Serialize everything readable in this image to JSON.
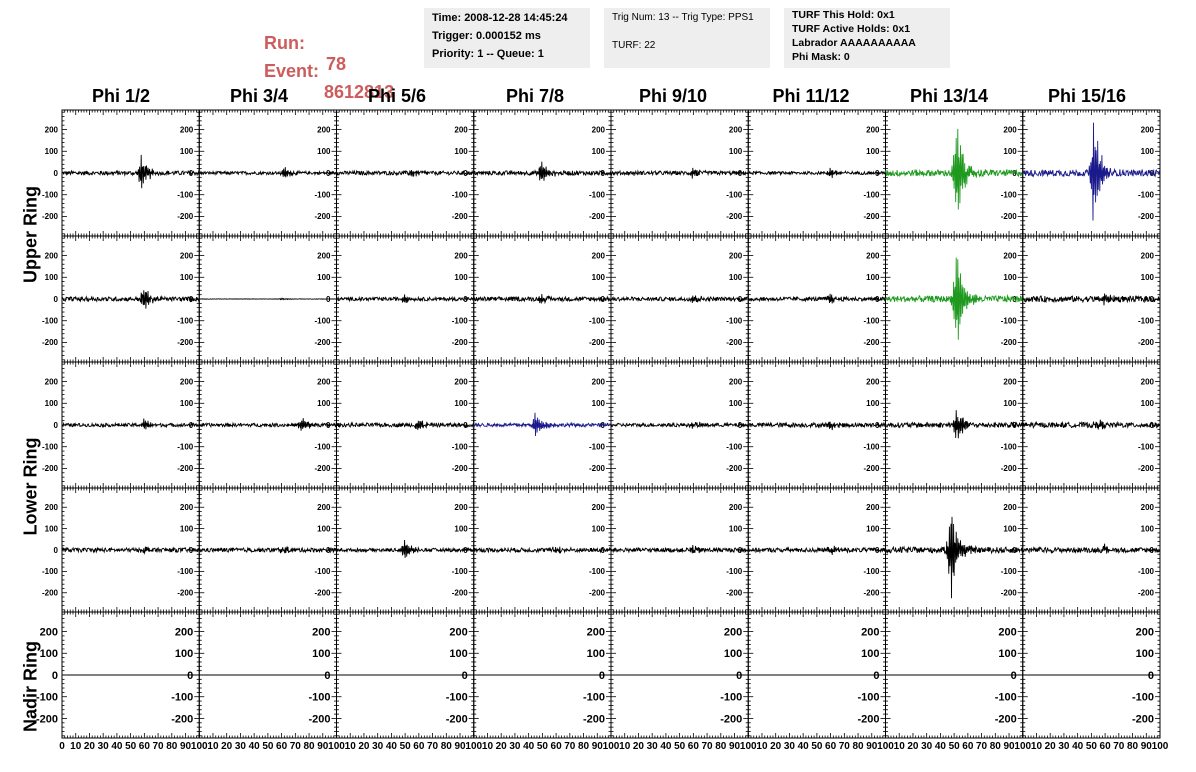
{
  "header": {
    "run_label": "Run:",
    "run_value": "78",
    "event_label": "Event:",
    "event_value": "8612813"
  },
  "info_boxes": [
    {
      "lines": [
        "Time: 2008-12-28 14:45:24",
        "Trigger: 0.000152 ms",
        "Priority: 1 -- Queue: 1"
      ]
    },
    {
      "lines": [
        "Trig Num: 13 -- Trig Type: PPS1",
        "TURF: 22"
      ]
    },
    {
      "lines": [
        "TURF This Hold: 0x1",
        "TURF Active Holds: 0x1",
        "Labrador AAAAAAAAAA",
        "Phi Mask: 0"
      ]
    }
  ],
  "phi_titles": [
    "Phi 1/2",
    "Phi 3/4",
    "Phi 5/6",
    "Phi 7/8",
    "Phi 9/10",
    "Phi 11/12",
    "Phi 13/14",
    "Phi 15/16"
  ],
  "ring_labels": [
    "Upper Ring",
    "Lower Ring",
    "Nadir Ring"
  ],
  "colors": {
    "normal": "#000000",
    "triggered_green": "#1f9a1f",
    "triggered_blue": "#1a1a8c",
    "header_red": "#cd5c5c",
    "box_bg": "#eeeeee"
  },
  "chart_data": {
    "type": "line",
    "xlim": [
      0,
      100
    ],
    "ylim": [
      -290,
      290
    ],
    "x_tick_labels": [
      "0",
      "10",
      "20",
      "30",
      "40",
      "50",
      "60",
      "70",
      "80",
      "90",
      "100"
    ],
    "y_tick_labels": [
      "200",
      "100",
      "0",
      "-100",
      "-200"
    ],
    "grid": false,
    "rows": 5,
    "columns": 8,
    "panels": [
      [
        {
          "color": "normal",
          "peak_x": 58,
          "amp": 90,
          "noise": 10
        },
        {
          "color": "normal",
          "peak_x": 62,
          "amp": 30,
          "noise": 7
        },
        {
          "color": "normal",
          "peak_x": 55,
          "amp": 25,
          "noise": 9
        },
        {
          "color": "normal",
          "peak_x": 50,
          "amp": 60,
          "noise": 10
        },
        {
          "color": "normal",
          "peak_x": 60,
          "amp": 25,
          "noise": 9
        },
        {
          "color": "normal",
          "peak_x": 60,
          "amp": 25,
          "noise": 7
        },
        {
          "color": "triggered_green",
          "peak_x": 52,
          "amp": 270,
          "noise": 15
        },
        {
          "color": "triggered_blue",
          "peak_x": 52,
          "amp": 270,
          "noise": 15
        }
      ],
      [
        {
          "color": "normal",
          "peak_x": 60,
          "amp": 60,
          "noise": 10
        },
        {
          "color": "normal",
          "peak_x": 60,
          "amp": 4,
          "noise": 1
        },
        {
          "color": "normal",
          "peak_x": 50,
          "amp": 30,
          "noise": 8
        },
        {
          "color": "normal",
          "peak_x": 50,
          "amp": 25,
          "noise": 10
        },
        {
          "color": "normal",
          "peak_x": 60,
          "amp": 25,
          "noise": 9
        },
        {
          "color": "normal",
          "peak_x": 60,
          "amp": 25,
          "noise": 9
        },
        {
          "color": "triggered_green",
          "peak_x": 52,
          "amp": 260,
          "noise": 15
        },
        {
          "color": "normal",
          "peak_x": 60,
          "amp": 30,
          "noise": 14
        }
      ],
      [
        {
          "color": "normal",
          "peak_x": 60,
          "amp": 25,
          "noise": 8
        },
        {
          "color": "normal",
          "peak_x": 75,
          "amp": 35,
          "noise": 8
        },
        {
          "color": "normal",
          "peak_x": 60,
          "amp": 30,
          "noise": 9
        },
        {
          "color": "triggered_blue",
          "peak_x": 45,
          "amp": 60,
          "noise": 8
        },
        {
          "color": "normal",
          "peak_x": 60,
          "amp": 20,
          "noise": 8
        },
        {
          "color": "normal",
          "peak_x": 60,
          "amp": 20,
          "noise": 10
        },
        {
          "color": "normal",
          "peak_x": 52,
          "amp": 80,
          "noise": 12
        },
        {
          "color": "normal",
          "peak_x": 55,
          "amp": 30,
          "noise": 12
        }
      ],
      [
        {
          "color": "normal",
          "peak_x": 60,
          "amp": 20,
          "noise": 10
        },
        {
          "color": "normal",
          "peak_x": 60,
          "amp": 20,
          "noise": 10
        },
        {
          "color": "normal",
          "peak_x": 50,
          "amp": 50,
          "noise": 8
        },
        {
          "color": "normal",
          "peak_x": 60,
          "amp": 20,
          "noise": 10
        },
        {
          "color": "normal",
          "peak_x": 60,
          "amp": 20,
          "noise": 10
        },
        {
          "color": "normal",
          "peak_x": 60,
          "amp": 20,
          "noise": 10
        },
        {
          "color": "normal",
          "peak_x": 48,
          "amp": 230,
          "noise": 14
        },
        {
          "color": "normal",
          "peak_x": 60,
          "amp": 30,
          "noise": 12
        }
      ],
      [
        {
          "color": "normal",
          "peak_x": 50,
          "amp": 0,
          "noise": 0
        },
        {
          "color": "normal",
          "peak_x": 50,
          "amp": 0,
          "noise": 0
        },
        {
          "color": "normal",
          "peak_x": 50,
          "amp": 0,
          "noise": 0
        },
        {
          "color": "normal",
          "peak_x": 50,
          "amp": 0,
          "noise": 0
        },
        {
          "color": "normal",
          "peak_x": 50,
          "amp": 0,
          "noise": 0
        },
        {
          "color": "normal",
          "peak_x": 50,
          "amp": 0,
          "noise": 0
        },
        {
          "color": "normal",
          "peak_x": 50,
          "amp": 0,
          "noise": 0
        },
        {
          "color": "normal",
          "peak_x": 50,
          "amp": 0,
          "noise": 0
        }
      ]
    ]
  }
}
